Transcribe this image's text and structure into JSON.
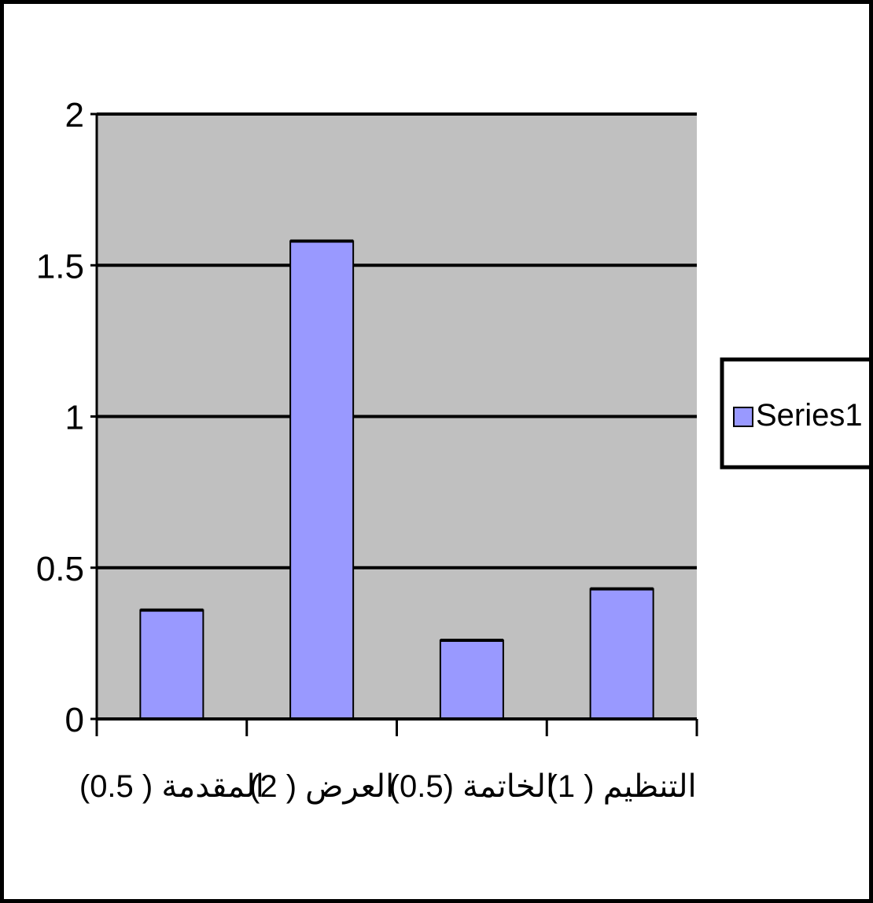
{
  "chart_data": {
    "type": "bar",
    "categories": [
      "المقدمة ( 0.5)",
      "العرض ( 2)",
      "الخاتمة (0.5)",
      "التنظيم ( 1)"
    ],
    "series": [
      {
        "name": "Series1",
        "values": [
          0.36,
          1.58,
          0.26,
          0.43
        ]
      }
    ],
    "ylim": [
      0,
      2
    ],
    "yticks": [
      "0",
      "0.5",
      "1",
      "1.5",
      "2"
    ],
    "ytick_values": [
      0,
      0.5,
      1,
      1.5,
      2
    ],
    "grid": true,
    "legend_position": "right",
    "colors": {
      "plot_background": "#C0C0C0",
      "bar_fill": "#9999FF",
      "axis": "#000000"
    }
  }
}
